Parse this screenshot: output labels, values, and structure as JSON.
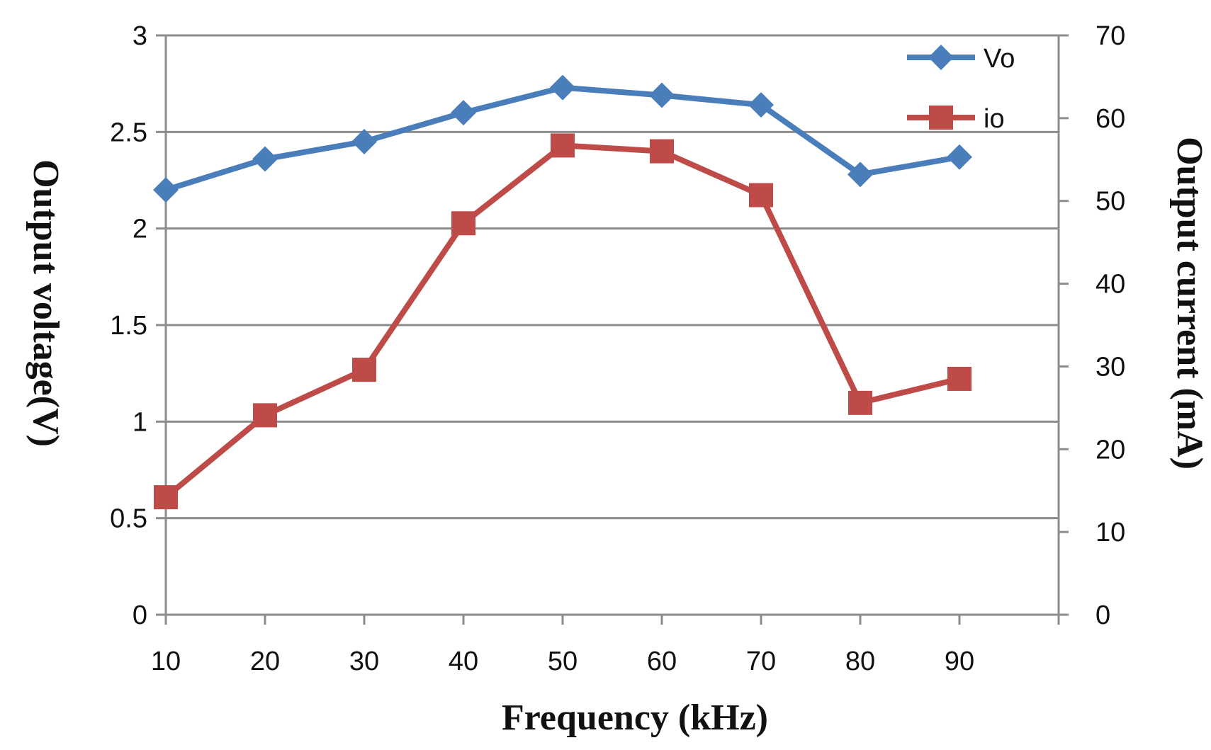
{
  "chart_data": {
    "type": "line",
    "title": "",
    "xlabel": "Frequency (kHz)",
    "ylabel": "Output voltage(V)",
    "y2label": "Output current (mA)",
    "categories": [
      "10",
      "20",
      "30",
      "40",
      "50",
      "60",
      "70",
      "80",
      "90"
    ],
    "ylim": [
      0,
      3
    ],
    "y2lim": [
      0,
      70
    ],
    "y_ticks": [
      "0",
      "0.5",
      "1",
      "1.5",
      "2",
      "2.5",
      "3"
    ],
    "y2_ticks": [
      "0",
      "10",
      "20",
      "30",
      "40",
      "50",
      "60",
      "70"
    ],
    "legend_position": "top-right",
    "grid": true,
    "series": [
      {
        "name": "Vo",
        "axis": "left",
        "marker": "diamond",
        "color": "#4a7ebb",
        "values": [
          2.2,
          2.36,
          2.45,
          2.6,
          2.73,
          2.69,
          2.64,
          2.28,
          2.37
        ]
      },
      {
        "name": "io",
        "axis": "right",
        "marker": "square",
        "color": "#be4b48",
        "values": [
          14.2,
          24.1,
          29.6,
          47.3,
          56.7,
          56.0,
          50.7,
          25.6,
          28.5
        ]
      }
    ]
  }
}
